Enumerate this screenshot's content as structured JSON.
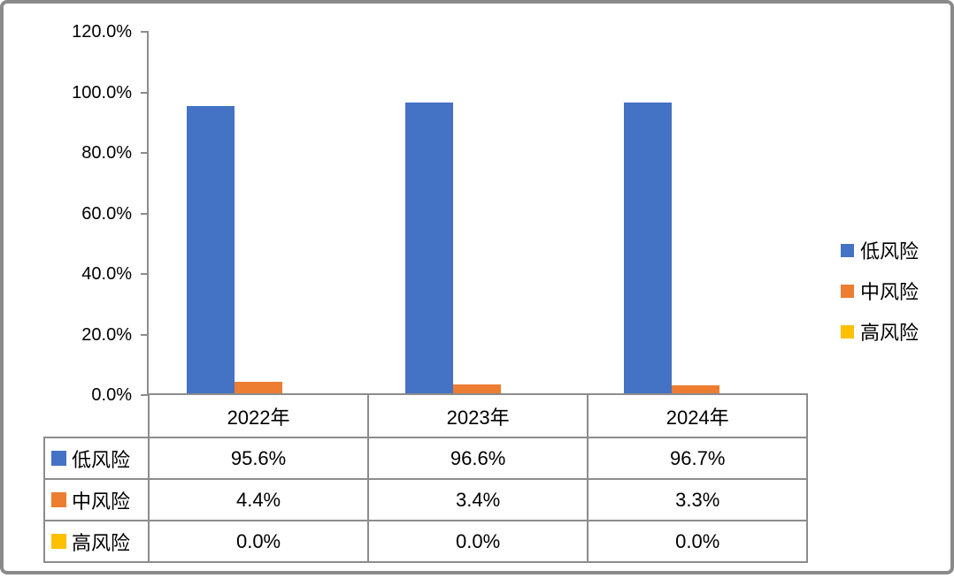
{
  "chart_data": {
    "type": "bar",
    "title": "",
    "categories": [
      "2022年",
      "2023年",
      "2024年"
    ],
    "series": [
      {
        "name": "低风险",
        "color": "#4472C4",
        "values": [
          95.6,
          96.6,
          96.7
        ],
        "display_values": [
          "95.6%",
          "96.6%",
          "96.7%"
        ]
      },
      {
        "name": "中风险",
        "color": "#ED7D31",
        "values": [
          4.4,
          3.4,
          3.3
        ],
        "display_values": [
          "4.4%",
          "3.4%",
          "3.3%"
        ]
      },
      {
        "name": "高风险",
        "color": "#FFC000",
        "values": [
          0.0,
          0.0,
          0.0
        ],
        "display_values": [
          "0.0%",
          "0.0%",
          "0.0%"
        ]
      }
    ],
    "y_axis": {
      "min": 0,
      "max": 120,
      "tick_step": 20,
      "tick_labels_top_to_bottom": [
        "120.0%",
        "100.0%",
        "80.0%",
        "60.0%",
        "40.0%",
        "20.0%",
        "0.0%"
      ]
    },
    "x_axis_label": "",
    "y_axis_label": "",
    "grid": false,
    "legend_position": "right",
    "legend_items": [
      "低风险",
      "中风险",
      "高风险"
    ],
    "data_table_visible": true
  },
  "colors": {
    "bar_blue": "#4472C4",
    "bar_orange": "#ED7D31",
    "bar_yellow": "#FFC000",
    "line_gray": "#8c8c8c",
    "frame_gray": "#8a8a8a",
    "text": "#000000",
    "background": "#ffffff"
  }
}
